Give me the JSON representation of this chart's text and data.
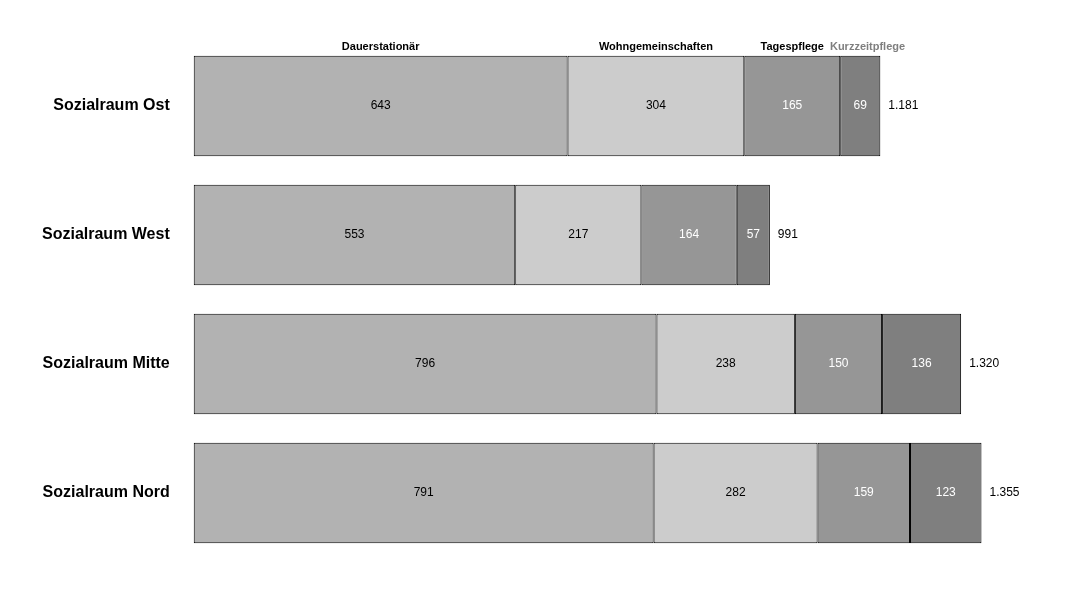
{
  "chart_data": {
    "type": "bar",
    "orientation": "horizontal",
    "stacked": true,
    "categories": [
      "Sozialraum Ost",
      "Sozialraum West",
      "Sozialraum Mitte",
      "Sozialraum Nord"
    ],
    "series": [
      {
        "name": "Dauerstationär",
        "color": "#b2b2b2",
        "values": [
          643,
          553,
          796,
          791
        ]
      },
      {
        "name": "Wohngemeinschaften",
        "color": "#cccccc",
        "values": [
          304,
          217,
          238,
          282
        ]
      },
      {
        "name": "Tagespflege",
        "color": "#969696",
        "values": [
          165,
          164,
          150,
          159
        ]
      },
      {
        "name": "Kurzzeitpflege",
        "color": "#7f7f7f",
        "values": [
          69,
          57,
          136,
          123
        ]
      }
    ],
    "data_labels": true,
    "totals": [
      "1.181",
      "991",
      "1.320",
      "1.355"
    ],
    "tick_labels": "y",
    "legend": false
  }
}
